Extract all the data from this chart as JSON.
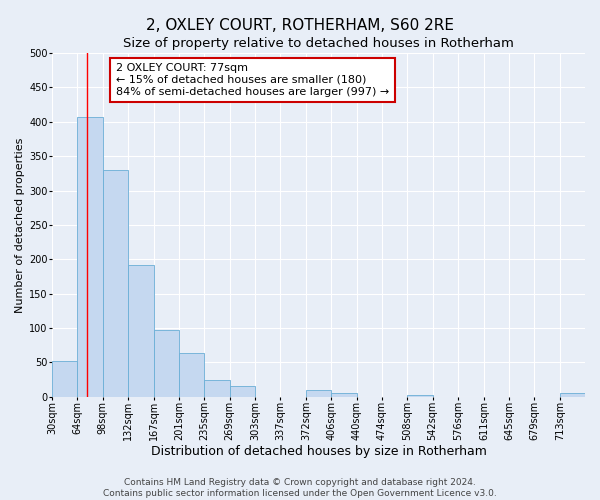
{
  "title": "2, OXLEY COURT, ROTHERHAM, S60 2RE",
  "subtitle": "Size of property relative to detached houses in Rotherham",
  "xlabel": "Distribution of detached houses by size in Rotherham",
  "ylabel": "Number of detached properties",
  "bar_labels": [
    "30sqm",
    "64sqm",
    "98sqm",
    "132sqm",
    "167sqm",
    "201sqm",
    "235sqm",
    "269sqm",
    "303sqm",
    "337sqm",
    "372sqm",
    "406sqm",
    "440sqm",
    "474sqm",
    "508sqm",
    "542sqm",
    "576sqm",
    "611sqm",
    "645sqm",
    "679sqm",
    "713sqm"
  ],
  "bar_values": [
    52,
    407,
    330,
    192,
    97,
    63,
    24,
    15,
    0,
    0,
    10,
    5,
    0,
    0,
    2,
    0,
    0,
    0,
    0,
    0,
    5
  ],
  "bar_color": "#c5d8f0",
  "bar_edge_color": "#6aaed6",
  "ylim": [
    0,
    500
  ],
  "yticks": [
    0,
    50,
    100,
    150,
    200,
    250,
    300,
    350,
    400,
    450,
    500
  ],
  "red_line_x": 77,
  "bin_edges": [
    30,
    64,
    98,
    132,
    167,
    201,
    235,
    269,
    303,
    337,
    372,
    406,
    440,
    474,
    508,
    542,
    576,
    611,
    645,
    679,
    713,
    747
  ],
  "annotation_title": "2 OXLEY COURT: 77sqm",
  "annotation_line1": "← 15% of detached houses are smaller (180)",
  "annotation_line2": "84% of semi-detached houses are larger (997) →",
  "annotation_box_facecolor": "#ffffff",
  "annotation_box_edgecolor": "#cc0000",
  "footer_line1": "Contains HM Land Registry data © Crown copyright and database right 2024.",
  "footer_line2": "Contains public sector information licensed under the Open Government Licence v3.0.",
  "background_color": "#e8eef7",
  "plot_background": "#e8eef7",
  "grid_color": "#ffffff",
  "title_fontsize": 11,
  "subtitle_fontsize": 9.5,
  "xlabel_fontsize": 9,
  "ylabel_fontsize": 8,
  "tick_fontsize": 7,
  "annotation_fontsize": 8,
  "footer_fontsize": 6.5
}
